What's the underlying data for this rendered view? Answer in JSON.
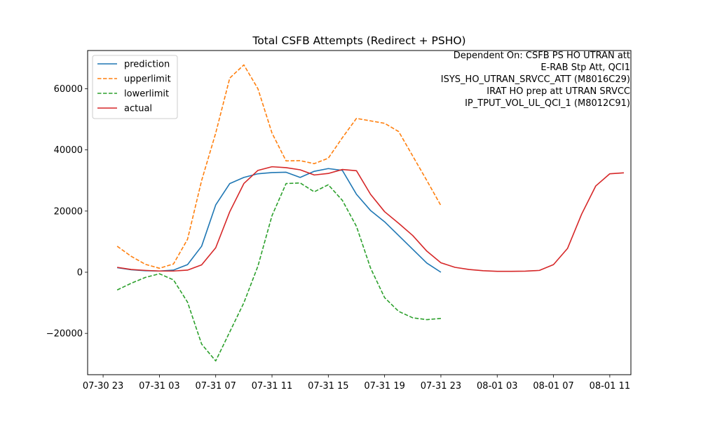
{
  "chart_data": {
    "type": "line",
    "title": "Total CSFB Attempts (Redirect + PSHO)",
    "xlabel": "",
    "ylabel": "",
    "x_tick_labels": [
      "07-30 23",
      "07-31 03",
      "07-31 07",
      "07-31 11",
      "07-31 15",
      "07-31 19",
      "07-31 23",
      "08-01 03",
      "08-01 07",
      "08-01 11"
    ],
    "x_tick_hours": [
      0,
      4,
      8,
      12,
      16,
      20,
      24,
      28,
      32,
      36
    ],
    "y_ticks": [
      -20000,
      0,
      20000,
      40000,
      60000
    ],
    "y_tick_labels": [
      "−20000",
      "0",
      "20000",
      "40000",
      "60000"
    ],
    "xlim_hours": [
      -1.1,
      37.5
    ],
    "ylim": [
      -33500,
      72500
    ],
    "grid": false,
    "legend_position": "upper left",
    "annotation": [
      "Dependent On: CSFB PS HO UTRAN att",
      "E-RAB Stp Att, QCI1",
      "ISYS_HO_UTRAN_SRVCC_ATT (M8016C29)",
      "IRAT HO prep att UTRAN SRVCC",
      "IP_TPUT_VOL_UL_QCI_1 (M8012C91)"
    ],
    "series": [
      {
        "name": "prediction",
        "color": "#1f77b4",
        "dash": "solid",
        "x": [
          1,
          2,
          3,
          4,
          5,
          6,
          7,
          8,
          9,
          10,
          11,
          12,
          13,
          14,
          15,
          16,
          17,
          18,
          19,
          20,
          21,
          22,
          23,
          24
        ],
        "values": [
          1500,
          800,
          500,
          400,
          700,
          2500,
          8500,
          22000,
          29000,
          31000,
          32200,
          32600,
          32700,
          31000,
          33000,
          33900,
          33300,
          25500,
          20200,
          16500,
          12000,
          7500,
          3000,
          0
        ]
      },
      {
        "name": "upperlimit",
        "color": "#ff7f0e",
        "dash": "dashed",
        "x": [
          1,
          2,
          3,
          4,
          5,
          6,
          7,
          8,
          9,
          10,
          11,
          12,
          13,
          14,
          15,
          16,
          17,
          18,
          19,
          20,
          21,
          22,
          23,
          24
        ],
        "values": [
          8500,
          5200,
          2600,
          1300,
          2700,
          10800,
          30000,
          45500,
          63500,
          67800,
          60000,
          45500,
          36400,
          36500,
          35500,
          37300,
          44000,
          50300,
          49500,
          48700,
          46000,
          38000,
          30000,
          21800
        ]
      },
      {
        "name": "lowerlimit",
        "color": "#2ca02c",
        "dash": "dashed",
        "x": [
          1,
          2,
          3,
          4,
          5,
          6,
          7,
          8,
          9,
          10,
          11,
          12,
          13,
          14,
          15,
          16,
          17,
          18,
          19,
          20,
          21,
          22,
          23,
          24
        ],
        "values": [
          -5800,
          -3600,
          -1700,
          -500,
          -2500,
          -9800,
          -23500,
          -29000,
          -19500,
          -10000,
          2000,
          18500,
          29000,
          29200,
          26300,
          28600,
          23500,
          15000,
          1400,
          -8300,
          -12800,
          -14900,
          -15500,
          -15100
        ]
      },
      {
        "name": "actual",
        "color": "#d62728",
        "dash": "solid",
        "x": [
          1,
          2,
          3,
          4,
          5,
          6,
          7,
          8,
          9,
          10,
          11,
          12,
          13,
          14,
          15,
          16,
          17,
          18,
          19,
          20,
          21,
          22,
          23,
          24,
          25,
          26,
          27,
          28,
          29,
          30,
          31,
          32,
          33,
          34,
          35,
          36,
          37
        ],
        "values": [
          1600,
          900,
          600,
          400,
          400,
          700,
          2400,
          8000,
          19800,
          29000,
          33300,
          34500,
          34200,
          33500,
          31800,
          32300,
          33600,
          33200,
          25500,
          19800,
          16000,
          12000,
          6900,
          3100,
          1600,
          900,
          500,
          300,
          300,
          350,
          600,
          2500,
          7800,
          19000,
          28200,
          32200,
          32500
        ]
      }
    ]
  }
}
